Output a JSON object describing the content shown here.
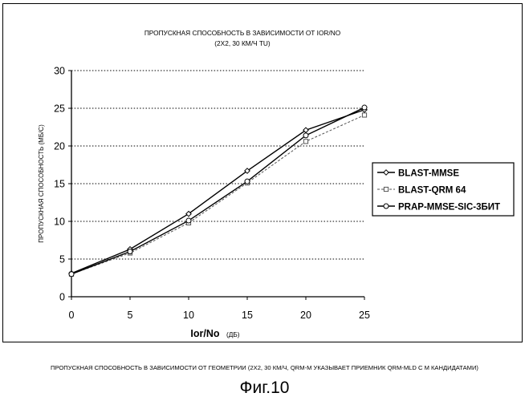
{
  "chart_data": {
    "type": "line",
    "title": "ПРОПУСКНАЯ СПОСОБНОСТЬ В ЗАВИСИМОСТИ ОТ IOR/NO",
    "subtitle": "(2X2, 30 КМ/Ч TU)",
    "xlabel_main": "Ior/No",
    "xlabel_unit": "(ДБ)",
    "ylabel": "ПРОПУСКНАЯ СПОСОБНОСТЬ (МБ/С)",
    "xlim": [
      0,
      25
    ],
    "ylim": [
      0,
      30
    ],
    "xticks": [
      "0",
      "5",
      "10",
      "15",
      "20",
      "25"
    ],
    "yticks": [
      "0",
      "5",
      "10",
      "15",
      "20",
      "25",
      "30"
    ],
    "grid": "horizontal dotted",
    "legend_position": "right",
    "series": [
      {
        "name": "BLAST-MMSE",
        "line_style": "solid",
        "marker": "diamond",
        "color": "#000000",
        "x": [
          0,
          5,
          10,
          15,
          20,
          25
        ],
        "y": [
          3.1,
          6.3,
          11.0,
          16.7,
          22.1,
          24.8
        ]
      },
      {
        "name": "BLAST-QRM 64",
        "line_style": "dashed",
        "marker": "square",
        "color": "#555555",
        "x": [
          0,
          5,
          10,
          15,
          20,
          25
        ],
        "y": [
          3.0,
          5.8,
          9.8,
          15.1,
          20.6,
          24.1
        ]
      },
      {
        "name": "PRAP-MMSE-SIC-3БИТ",
        "line_style": "solid",
        "marker": "circle",
        "color": "#000000",
        "x": [
          0,
          5,
          10,
          15,
          20,
          25
        ],
        "y": [
          3.0,
          6.0,
          10.1,
          15.3,
          21.4,
          25.1
        ]
      }
    ]
  },
  "caption": "ПРОПУСКНАЯ СПОСОБНОСТЬ В ЗАВИСИМОСТИ ОТ ГЕОМЕТРИИ (2X2, 30 КМ/Ч, QRM-M УКАЗЫВАЕТ ПРИЕМНИК QRM-MLD С M КАНДИДАТАМИ)",
  "figure_number": "Фиг.10"
}
